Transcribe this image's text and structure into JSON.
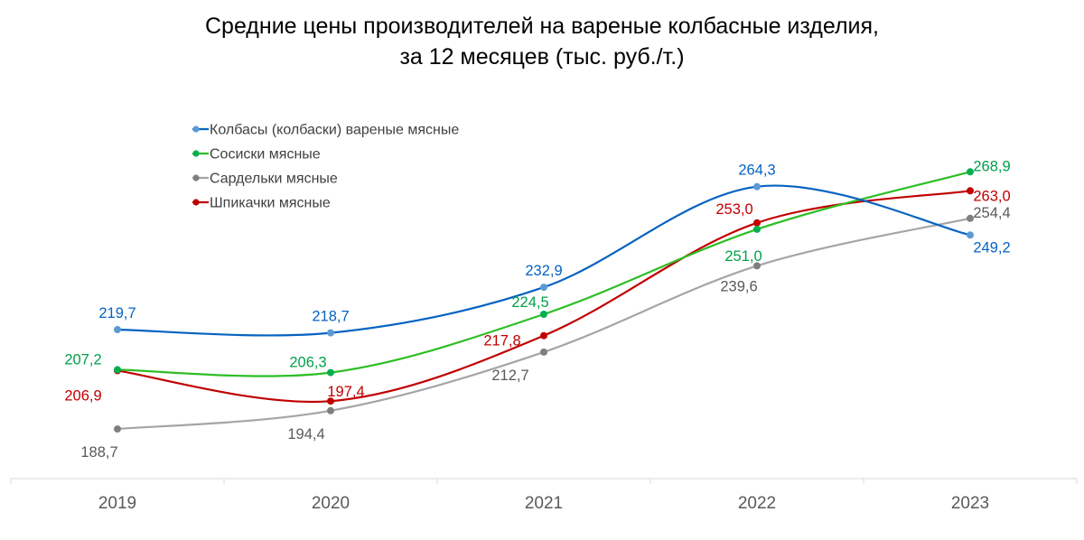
{
  "chart_data": {
    "type": "line",
    "title_lines": [
      "Средние цены производителей на вареные колбасные изделия,",
      "за 12 месяцев (тыс. руб./т.)"
    ],
    "categories": [
      "2019",
      "2020",
      "2021",
      "2022",
      "2023"
    ],
    "smooth": true,
    "grid": false,
    "legend_position": "top-left",
    "series": [
      {
        "name": "Колбасы (колбаски) вареные мясные",
        "color": "#0563C1",
        "marker_color": "#5B9BD5",
        "values": [
          219.7,
          218.7,
          232.9,
          264.3,
          249.2
        ],
        "labels": [
          "219,7",
          "218,7",
          "232,9",
          "264,3",
          "249,2"
        ]
      },
      {
        "name": "Сосиски мясные",
        "color": "#2DBE25",
        "marker_color": "#00B050",
        "label_color": "#00A04A",
        "values": [
          207.2,
          206.3,
          224.5,
          251.0,
          268.9
        ],
        "labels": [
          "207,2",
          "206,3",
          "224,5",
          "251,0",
          "268,9"
        ]
      },
      {
        "name": "Сардельки мясные",
        "color": "#A5A5A5",
        "marker_color": "#7F7F7F",
        "label_color": "#595959",
        "values": [
          188.7,
          194.4,
          212.7,
          239.6,
          254.4
        ],
        "labels": [
          "188,7",
          "194,4",
          "212,7",
          "239,6",
          "254,4"
        ]
      },
      {
        "name": "Шпикачки мясные",
        "color": "#C00000",
        "marker_color": "#C00000",
        "label_color": "#C00000",
        "values": [
          206.9,
          197.4,
          217.8,
          253.0,
          263.0
        ],
        "labels": [
          "206,9",
          "197,4",
          "217,8",
          "253,0",
          "263,0"
        ]
      }
    ]
  }
}
